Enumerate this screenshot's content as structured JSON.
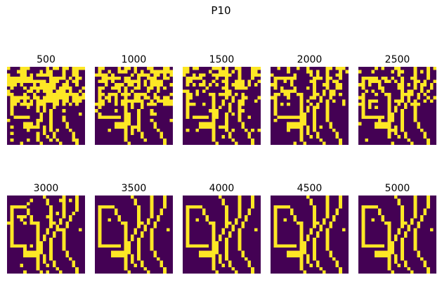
{
  "figure_title": "P10",
  "colors": {
    "off": "#440154",
    "on": "#fde725",
    "background": "#ffffff"
  },
  "chart_data": {
    "type": "heatmap",
    "title": "P10",
    "grid": false,
    "cmap": "viridis",
    "value_range": [
      0,
      1
    ],
    "grid_size": [
      24,
      24
    ],
    "panels": [
      {
        "label": "500"
      },
      {
        "label": "1000"
      },
      {
        "label": "1500"
      },
      {
        "label": "2000"
      },
      {
        "label": "2500"
      },
      {
        "label": "3000"
      },
      {
        "label": "3500"
      },
      {
        "label": "4000"
      },
      {
        "label": "4500"
      },
      {
        "label": "5000"
      }
    ]
  }
}
